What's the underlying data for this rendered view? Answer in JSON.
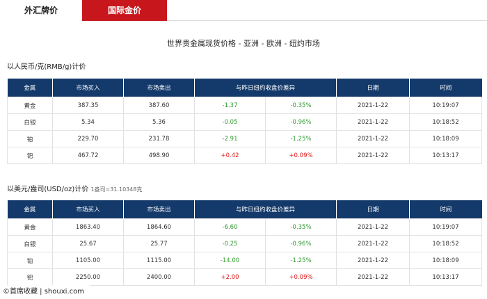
{
  "tabs": [
    {
      "label": "外汇牌价"
    },
    {
      "label": "国际金价"
    }
  ],
  "title": "世界贵金属现货价格 - 亚洲 - 欧洲 - 纽约市场",
  "colors": {
    "tab_active": "#c8161d",
    "header_bg": "#143a6b",
    "up": "#e01818",
    "down": "#2e9a2e"
  },
  "headers": [
    "金属",
    "市场买入",
    "市场卖出",
    "与昨日纽约收盘价差异",
    "日期",
    "时间"
  ],
  "sections": [
    {
      "unit": "以人民币/克(RMB/g)计价",
      "note": "",
      "rows": [
        {
          "metal": "黄金",
          "buy": "387.35",
          "sell": "387.60",
          "diff": "-1.37",
          "pct": "-0.35%",
          "date": "2021-1-22",
          "time": "10:19:07"
        },
        {
          "metal": "白银",
          "buy": "5.34",
          "sell": "5.36",
          "diff": "-0.05",
          "pct": "-0.96%",
          "date": "2021-1-22",
          "time": "10:18:52"
        },
        {
          "metal": "铂",
          "buy": "229.70",
          "sell": "231.78",
          "diff": "-2.91",
          "pct": "-1.25%",
          "date": "2021-1-22",
          "time": "10:18:09"
        },
        {
          "metal": "钯",
          "buy": "467.72",
          "sell": "498.90",
          "diff": "+0.42",
          "pct": "+0.09%",
          "date": "2021-1-22",
          "time": "10:13:17"
        }
      ]
    },
    {
      "unit": "以美元/盎司(USD/oz)计价",
      "note": "1盎司=31.10348克",
      "rows": [
        {
          "metal": "黄金",
          "buy": "1863.40",
          "sell": "1864.60",
          "diff": "-6.60",
          "pct": "-0.35%",
          "date": "2021-1-22",
          "time": "10:19:07"
        },
        {
          "metal": "白银",
          "buy": "25.67",
          "sell": "25.77",
          "diff": "-0.25",
          "pct": "-0.96%",
          "date": "2021-1-22",
          "time": "10:18:52"
        },
        {
          "metal": "铂",
          "buy": "1105.00",
          "sell": "1115.00",
          "diff": "-14.00",
          "pct": "-1.25%",
          "date": "2021-1-22",
          "time": "10:18:09"
        },
        {
          "metal": "钯",
          "buy": "2250.00",
          "sell": "2400.00",
          "diff": "+2.00",
          "pct": "+0.09%",
          "date": "2021-1-22",
          "time": "10:13:17"
        }
      ]
    }
  ],
  "watermark": "©首席收藏 | shouxi.com"
}
